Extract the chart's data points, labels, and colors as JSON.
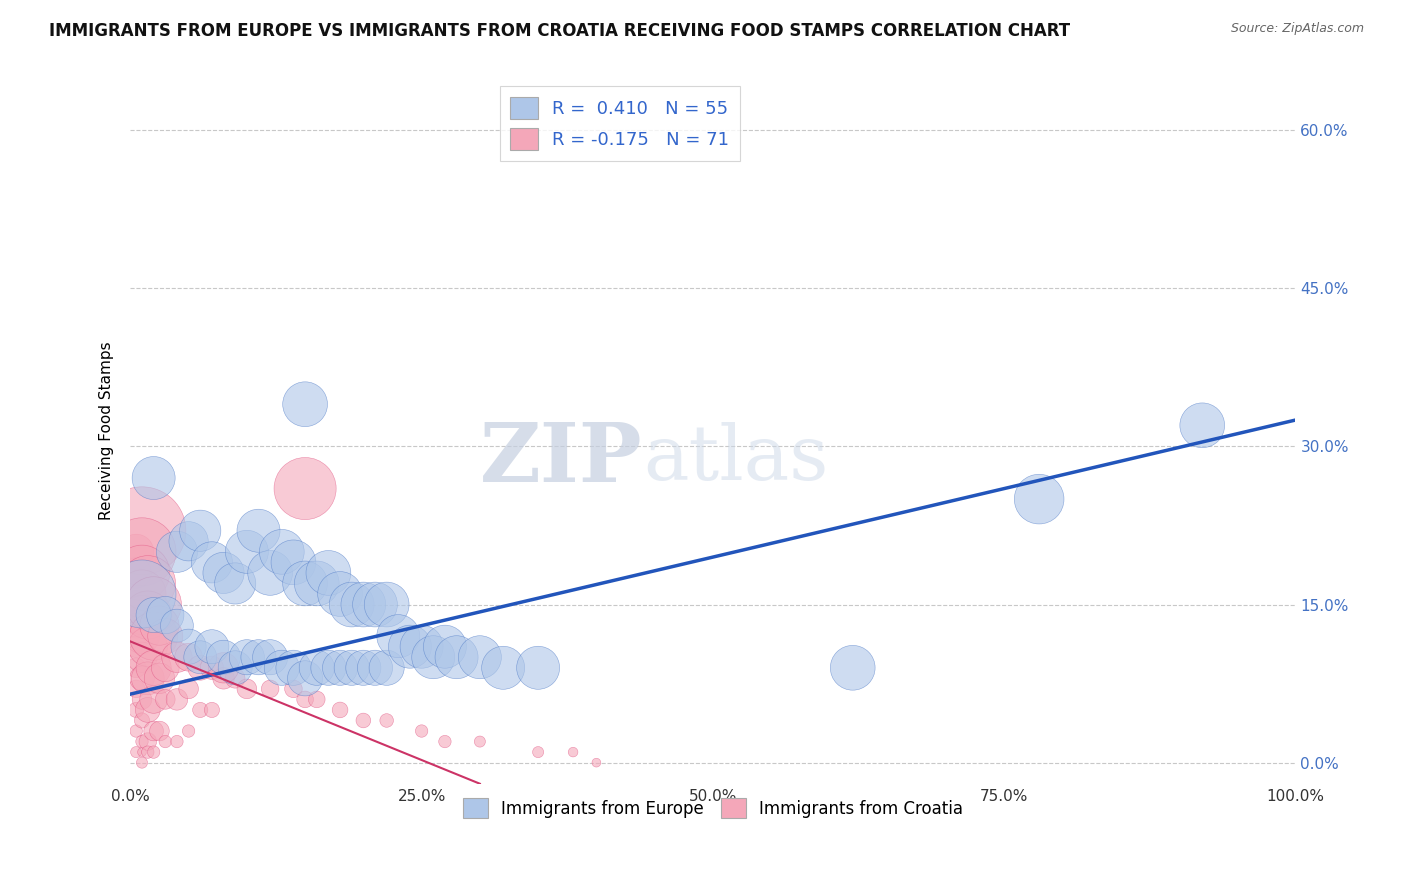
{
  "title": "IMMIGRANTS FROM EUROPE VS IMMIGRANTS FROM CROATIA RECEIVING FOOD STAMPS CORRELATION CHART",
  "source": "Source: ZipAtlas.com",
  "ylabel": "Receiving Food Stamps",
  "xlim": [
    0,
    1.0
  ],
  "ylim": [
    -0.02,
    0.65
  ],
  "xticks": [
    0.0,
    0.25,
    0.5,
    0.75,
    1.0
  ],
  "xtick_labels": [
    "0.0%",
    "25.0%",
    "50.0%",
    "75.0%",
    "100.0%"
  ],
  "yticks": [
    0.0,
    0.15,
    0.3,
    0.45,
    0.6
  ],
  "ytick_labels": [
    "0.0%",
    "15.0%",
    "30.0%",
    "45.0%",
    "60.0%"
  ],
  "legend_line1": "R =  0.410   N = 55",
  "legend_line2": "R = -0.175   N = 71",
  "bottom_legend1": "Immigrants from Europe",
  "bottom_legend2": "Immigrants from Croatia",
  "europe_color": "#aec6e8",
  "croatia_color": "#f4a7b9",
  "europe_edge_color": "#4472c4",
  "croatia_edge_color": "#e05080",
  "europe_line_color": "#2255bb",
  "croatia_line_color": "#cc3366",
  "watermark": "ZIPatlas",
  "background_color": "#ffffff",
  "grid_color": "#c8c8c8",
  "title_fontsize": 12,
  "label_fontsize": 11,
  "tick_fontsize": 11,
  "europe_scatter_x": [
    0.01,
    0.02,
    0.02,
    0.03,
    0.04,
    0.04,
    0.05,
    0.05,
    0.06,
    0.06,
    0.07,
    0.07,
    0.08,
    0.08,
    0.09,
    0.09,
    0.1,
    0.1,
    0.11,
    0.11,
    0.12,
    0.12,
    0.13,
    0.13,
    0.14,
    0.14,
    0.15,
    0.15,
    0.16,
    0.16,
    0.17,
    0.17,
    0.18,
    0.18,
    0.19,
    0.19,
    0.2,
    0.2,
    0.21,
    0.21,
    0.22,
    0.22,
    0.23,
    0.24,
    0.25,
    0.26,
    0.27,
    0.28,
    0.3,
    0.32,
    0.35,
    0.62,
    0.78,
    0.92,
    0.15
  ],
  "europe_scatter_y": [
    0.16,
    0.27,
    0.14,
    0.14,
    0.2,
    0.13,
    0.21,
    0.11,
    0.22,
    0.1,
    0.19,
    0.11,
    0.18,
    0.1,
    0.17,
    0.09,
    0.2,
    0.1,
    0.22,
    0.1,
    0.18,
    0.1,
    0.2,
    0.09,
    0.19,
    0.09,
    0.17,
    0.08,
    0.17,
    0.09,
    0.18,
    0.09,
    0.16,
    0.09,
    0.15,
    0.09,
    0.15,
    0.09,
    0.15,
    0.09,
    0.15,
    0.09,
    0.12,
    0.11,
    0.11,
    0.1,
    0.11,
    0.1,
    0.1,
    0.09,
    0.09,
    0.09,
    0.25,
    0.32,
    0.34
  ],
  "europe_scatter_size": [
    300,
    120,
    80,
    90,
    110,
    70,
    100,
    80,
    110,
    70,
    110,
    75,
    110,
    75,
    110,
    75,
    120,
    80,
    120,
    80,
    130,
    80,
    130,
    80,
    130,
    80,
    130,
    80,
    130,
    80,
    130,
    80,
    130,
    80,
    130,
    80,
    130,
    80,
    130,
    80,
    130,
    80,
    120,
    120,
    120,
    120,
    120,
    120,
    120,
    120,
    120,
    130,
    160,
    130,
    130
  ],
  "croatia_scatter_x": [
    0.005,
    0.005,
    0.005,
    0.005,
    0.005,
    0.005,
    0.005,
    0.005,
    0.005,
    0.005,
    0.01,
    0.01,
    0.01,
    0.01,
    0.01,
    0.01,
    0.01,
    0.01,
    0.01,
    0.01,
    0.01,
    0.01,
    0.01,
    0.015,
    0.015,
    0.015,
    0.015,
    0.015,
    0.015,
    0.015,
    0.02,
    0.02,
    0.02,
    0.02,
    0.02,
    0.02,
    0.025,
    0.025,
    0.025,
    0.03,
    0.03,
    0.03,
    0.03,
    0.04,
    0.04,
    0.04,
    0.05,
    0.05,
    0.05,
    0.06,
    0.06,
    0.07,
    0.07,
    0.08,
    0.09,
    0.1,
    0.12,
    0.14,
    0.15,
    0.16,
    0.18,
    0.2,
    0.22,
    0.25,
    0.27,
    0.3,
    0.35,
    0.38,
    0.4,
    0.15,
    0.08
  ],
  "croatia_scatter_y": [
    0.2,
    0.18,
    0.15,
    0.13,
    0.11,
    0.09,
    0.07,
    0.05,
    0.03,
    0.01,
    0.22,
    0.2,
    0.18,
    0.16,
    0.14,
    0.12,
    0.1,
    0.08,
    0.06,
    0.04,
    0.02,
    0.0,
    0.01,
    0.17,
    0.14,
    0.11,
    0.08,
    0.05,
    0.02,
    0.01,
    0.15,
    0.12,
    0.09,
    0.06,
    0.03,
    0.01,
    0.13,
    0.08,
    0.03,
    0.12,
    0.09,
    0.06,
    0.02,
    0.1,
    0.06,
    0.02,
    0.1,
    0.07,
    0.03,
    0.09,
    0.05,
    0.09,
    0.05,
    0.08,
    0.08,
    0.07,
    0.07,
    0.07,
    0.06,
    0.06,
    0.05,
    0.04,
    0.04,
    0.03,
    0.02,
    0.02,
    0.01,
    0.01,
    0.0,
    0.26,
    0.09
  ],
  "croatia_scatter_size": [
    80,
    60,
    50,
    40,
    30,
    25,
    20,
    15,
    10,
    8,
    500,
    300,
    200,
    150,
    100,
    80,
    60,
    40,
    25,
    15,
    10,
    8,
    5,
    200,
    150,
    100,
    70,
    40,
    20,
    10,
    200,
    150,
    80,
    50,
    25,
    10,
    100,
    60,
    25,
    80,
    50,
    25,
    10,
    60,
    30,
    10,
    50,
    25,
    10,
    40,
    15,
    35,
    15,
    30,
    25,
    25,
    20,
    20,
    18,
    18,
    16,
    14,
    12,
    10,
    10,
    8,
    8,
    6,
    5,
    250,
    60
  ],
  "europe_trend_x0": 0.0,
  "europe_trend_y0": 0.065,
  "europe_trend_x1": 1.0,
  "europe_trend_y1": 0.325,
  "croatia_trend_x0": 0.0,
  "croatia_trend_y0": 0.115,
  "croatia_trend_x1": 0.3,
  "croatia_trend_y1": -0.02
}
